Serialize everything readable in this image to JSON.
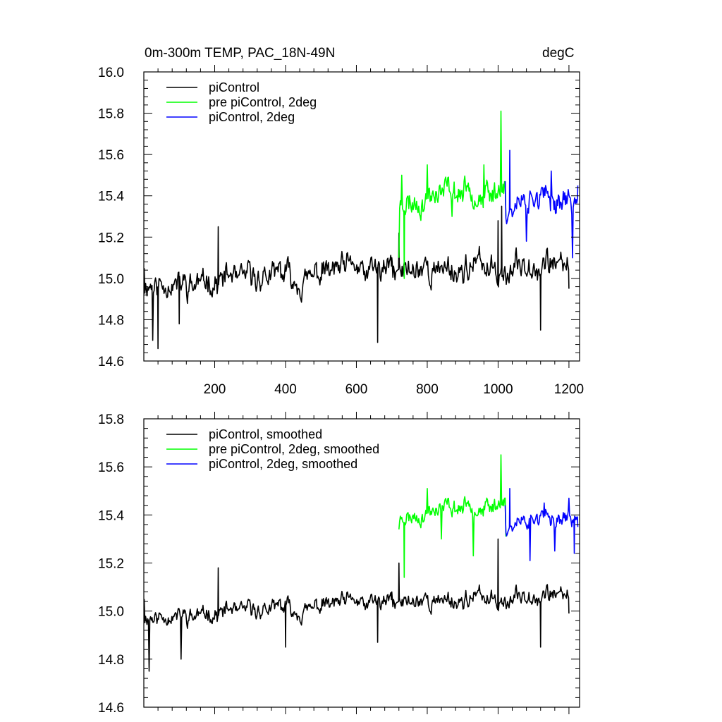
{
  "figure": {
    "title_left": "0m-300m TEMP, PAC_18N-49N",
    "title_right": "degC"
  },
  "chart_data": [
    {
      "type": "line",
      "panel": "top",
      "xlim": [
        0,
        1230
      ],
      "ylim": [
        14.6,
        16.0
      ],
      "xticks": [
        200,
        400,
        600,
        800,
        1000,
        1200
      ],
      "xtick_labels": [
        "200",
        "400",
        "600",
        "800",
        "1000",
        "1200"
      ],
      "yticks": [
        14.6,
        14.8,
        15.0,
        15.2,
        15.4,
        15.6,
        15.8,
        16.0
      ],
      "ytick_labels": [
        "14.6",
        "14.8",
        "15.0",
        "15.2",
        "15.4",
        "15.6",
        "15.8",
        "16.0"
      ],
      "legend": "top-left",
      "series": [
        {
          "name": "piControl",
          "color": "#000000",
          "x_start": 1,
          "x_end": 1200,
          "seed": 11,
          "base": 14.98,
          "trend": 0.09,
          "amp": 0.09,
          "ymin": 14.65,
          "ymax": 15.35,
          "keypoints": [
            [
              1,
              15.05
            ],
            [
              25,
              14.7
            ],
            [
              40,
              14.66
            ],
            [
              100,
              14.78
            ],
            [
              210,
              15.25
            ],
            [
              660,
              14.69
            ],
            [
              700,
              15.1
            ],
            [
              720,
              15.22
            ],
            [
              1000,
              15.28
            ],
            [
              1010,
              15.35
            ],
            [
              1120,
              14.75
            ],
            [
              1200,
              14.95
            ]
          ]
        },
        {
          "name": "pre piControl, 2deg",
          "color": "#00ff00",
          "x_start": 720,
          "x_end": 1022,
          "seed": 23,
          "base": 15.35,
          "trend": 0.1,
          "amp": 0.09,
          "ymin": 15.0,
          "ymax": 15.81,
          "keypoints": [
            [
              720,
              15.1
            ],
            [
              728,
              15.5
            ],
            [
              735,
              15.0
            ],
            [
              750,
              15.4
            ],
            [
              800,
              15.55
            ],
            [
              870,
              15.3
            ],
            [
              960,
              15.55
            ],
            [
              1008,
              15.81
            ],
            [
              1022,
              15.3
            ]
          ]
        },
        {
          "name": "piControl, 2deg",
          "color": "#0000ff",
          "x_start": 1020,
          "x_end": 1225,
          "seed": 37,
          "base": 15.35,
          "trend": 0.03,
          "amp": 0.09,
          "ymin": 15.1,
          "ymax": 15.62,
          "keypoints": [
            [
              1020,
              15.47
            ],
            [
              1033,
              15.62
            ],
            [
              1080,
              15.18
            ],
            [
              1150,
              15.52
            ],
            [
              1210,
              15.1
            ],
            [
              1225,
              15.45
            ]
          ]
        }
      ]
    },
    {
      "type": "line",
      "panel": "bottom",
      "xlim": [
        0,
        1230
      ],
      "ylim": [
        14.6,
        15.8
      ],
      "xticks": [
        200,
        400,
        600,
        800,
        1000,
        1200
      ],
      "xtick_labels": [],
      "yticks": [
        14.6,
        14.8,
        15.0,
        15.2,
        15.4,
        15.6,
        15.8
      ],
      "ytick_labels": [
        "14.6",
        "14.8",
        "15.0",
        "15.2",
        "15.4",
        "15.6",
        "15.8"
      ],
      "legend": "top-left",
      "series": [
        {
          "name": "piControl, smoothed",
          "color": "#000000",
          "x_start": 1,
          "x_end": 1200,
          "seed": 11,
          "base": 14.98,
          "trend": 0.09,
          "amp": 0.05,
          "ymin": 14.74,
          "ymax": 15.3,
          "keypoints": [
            [
              1,
              15.05
            ],
            [
              15,
              14.75
            ],
            [
              70,
              14.95
            ],
            [
              105,
              14.8
            ],
            [
              210,
              15.18
            ],
            [
              400,
              14.85
            ],
            [
              660,
              14.87
            ],
            [
              700,
              15.08
            ],
            [
              720,
              15.2
            ],
            [
              1000,
              15.3
            ],
            [
              1120,
              14.85
            ],
            [
              1200,
              14.99
            ]
          ]
        },
        {
          "name": "pre piControl, 2deg, smoothed",
          "color": "#00ff00",
          "x_start": 720,
          "x_end": 1022,
          "seed": 23,
          "base": 15.38,
          "trend": 0.08,
          "amp": 0.05,
          "ymin": 15.14,
          "ymax": 15.65,
          "keypoints": [
            [
              720,
              15.34
            ],
            [
              728,
              15.39
            ],
            [
              735,
              15.14
            ],
            [
              760,
              15.4
            ],
            [
              800,
              15.51
            ],
            [
              840,
              15.3
            ],
            [
              930,
              15.23
            ],
            [
              1008,
              15.65
            ],
            [
              1022,
              15.31
            ]
          ]
        },
        {
          "name": "piControl, 2deg, smoothed",
          "color": "#0000ff",
          "x_start": 1020,
          "x_end": 1225,
          "seed": 37,
          "base": 15.36,
          "trend": 0.03,
          "amp": 0.05,
          "ymin": 15.21,
          "ymax": 15.51,
          "keypoints": [
            [
              1020,
              15.44
            ],
            [
              1033,
              15.51
            ],
            [
              1090,
              15.21
            ],
            [
              1130,
              15.45
            ],
            [
              1160,
              15.25
            ],
            [
              1200,
              15.47
            ],
            [
              1215,
              15.24
            ],
            [
              1225,
              15.35
            ]
          ]
        }
      ]
    }
  ]
}
